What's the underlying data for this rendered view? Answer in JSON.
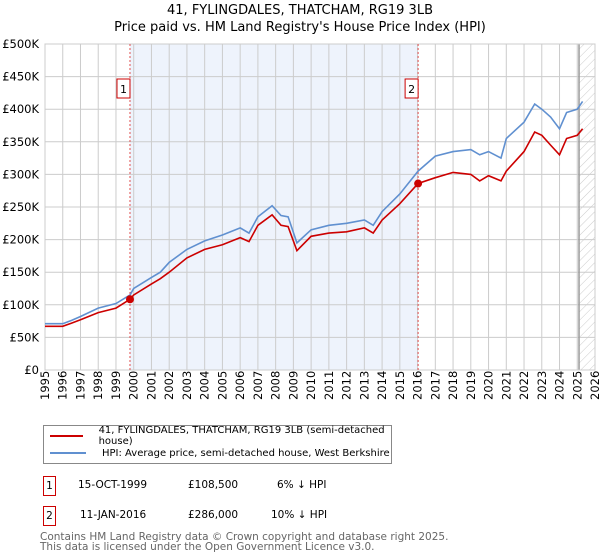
{
  "title": "41, FYLINGDALES, THATCHAM, RG19 3LB",
  "subtitle": "Price paid vs. HM Land Registry's House Price Index (HPI)",
  "chart_data": {
    "type": "line",
    "title": "41, FYLINGDALES, THATCHAM, RG19 3LB — Price paid vs. HM Land Registry's House Price Index (HPI)",
    "xlim": [
      1995,
      2026
    ],
    "ylim": [
      0,
      500000
    ],
    "yticks": [
      "£0",
      "£50K",
      "£100K",
      "£150K",
      "£200K",
      "£250K",
      "£300K",
      "£350K",
      "£400K",
      "£450K",
      "£500K"
    ],
    "xticks": [
      "1995",
      "1996",
      "1997",
      "1998",
      "1999",
      "2000",
      "2001",
      "2002",
      "2003",
      "2004",
      "2005",
      "2006",
      "2007",
      "2008",
      "2009",
      "2010",
      "2011",
      "2012",
      "2013",
      "2014",
      "2015",
      "2016",
      "2017",
      "2018",
      "2019",
      "2020",
      "2021",
      "2022",
      "2023",
      "2024",
      "2025",
      "2026"
    ],
    "shaded_range": [
      1999.79,
      2016.03
    ],
    "hatched_from": 2025.1,
    "series": [
      {
        "name": "41, FYLINGDALES, THATCHAM, RG19 3LB (semi-detached house)",
        "color": "#cc0000",
        "x": [
          1995,
          1996,
          1996.5,
          1997,
          1998,
          1999,
          1999.79,
          2000,
          2001,
          2001.5,
          2002,
          2003,
          2004,
          2005,
          2006,
          2006.5,
          2007,
          2007.8,
          2008.3,
          2008.7,
          2009.2,
          2010,
          2011,
          2012,
          2013,
          2013.5,
          2014,
          2015,
          2016.03,
          2017,
          2018,
          2019,
          2019.5,
          2020,
          2020.7,
          2021,
          2022,
          2022.6,
          2023,
          2023.5,
          2024,
          2024.4,
          2025,
          2025.3
        ],
        "y": [
          67000,
          67000,
          72000,
          77000,
          88000,
          95000,
          108500,
          115000,
          132000,
          140000,
          150000,
          172000,
          185000,
          192000,
          203000,
          197000,
          222000,
          238000,
          222000,
          220000,
          183000,
          205000,
          210000,
          212000,
          218000,
          210000,
          230000,
          255000,
          286000,
          295000,
          303000,
          300000,
          290000,
          298000,
          290000,
          305000,
          335000,
          365000,
          360000,
          345000,
          330000,
          355000,
          360000,
          370000
        ]
      },
      {
        "name": "HPI: Average price, semi-detached house, West Berkshire",
        "color": "#6090d0",
        "x": [
          1995,
          1996,
          1996.5,
          1997,
          1998,
          1999,
          1999.79,
          2000,
          2001,
          2001.5,
          2002,
          2003,
          2004,
          2005,
          2006,
          2006.5,
          2007,
          2007.8,
          2008.3,
          2008.7,
          2009.2,
          2010,
          2011,
          2012,
          2013,
          2013.5,
          2014,
          2015,
          2016.03,
          2017,
          2018,
          2019,
          2019.5,
          2020,
          2020.7,
          2021,
          2022,
          2022.6,
          2023,
          2023.5,
          2024,
          2024.4,
          2025,
          2025.3
        ],
        "y": [
          71000,
          71000,
          76000,
          82000,
          95000,
          102000,
          115000,
          125000,
          142000,
          150000,
          165000,
          185000,
          198000,
          207000,
          218000,
          210000,
          235000,
          252000,
          237000,
          235000,
          195000,
          215000,
          222000,
          225000,
          230000,
          222000,
          243000,
          270000,
          305000,
          328000,
          335000,
          338000,
          330000,
          335000,
          325000,
          355000,
          380000,
          408000,
          400000,
          388000,
          370000,
          395000,
          400000,
          412000
        ]
      }
    ],
    "annotations": [
      {
        "label": "1",
        "x": 1999.79,
        "y": 108500
      },
      {
        "label": "2",
        "x": 2016.03,
        "y": 286000
      }
    ]
  },
  "legend": [
    {
      "label": "41, FYLINGDALES, THATCHAM, RG19 3LB (semi-detached house)",
      "color": "#cc0000"
    },
    {
      "label": "HPI: Average price, semi-detached house, West Berkshire",
      "color": "#6090d0"
    }
  ],
  "transactions": [
    {
      "num": "1",
      "date": "15-OCT-1999",
      "price": "£108,500",
      "delta": "6% ↓ HPI"
    },
    {
      "num": "2",
      "date": "11-JAN-2016",
      "price": "£286,000",
      "delta": "10% ↓ HPI"
    }
  ],
  "footer": [
    "Contains HM Land Registry data © Crown copyright and database right 2025.",
    "This data is licensed under the Open Government Licence v3.0."
  ]
}
